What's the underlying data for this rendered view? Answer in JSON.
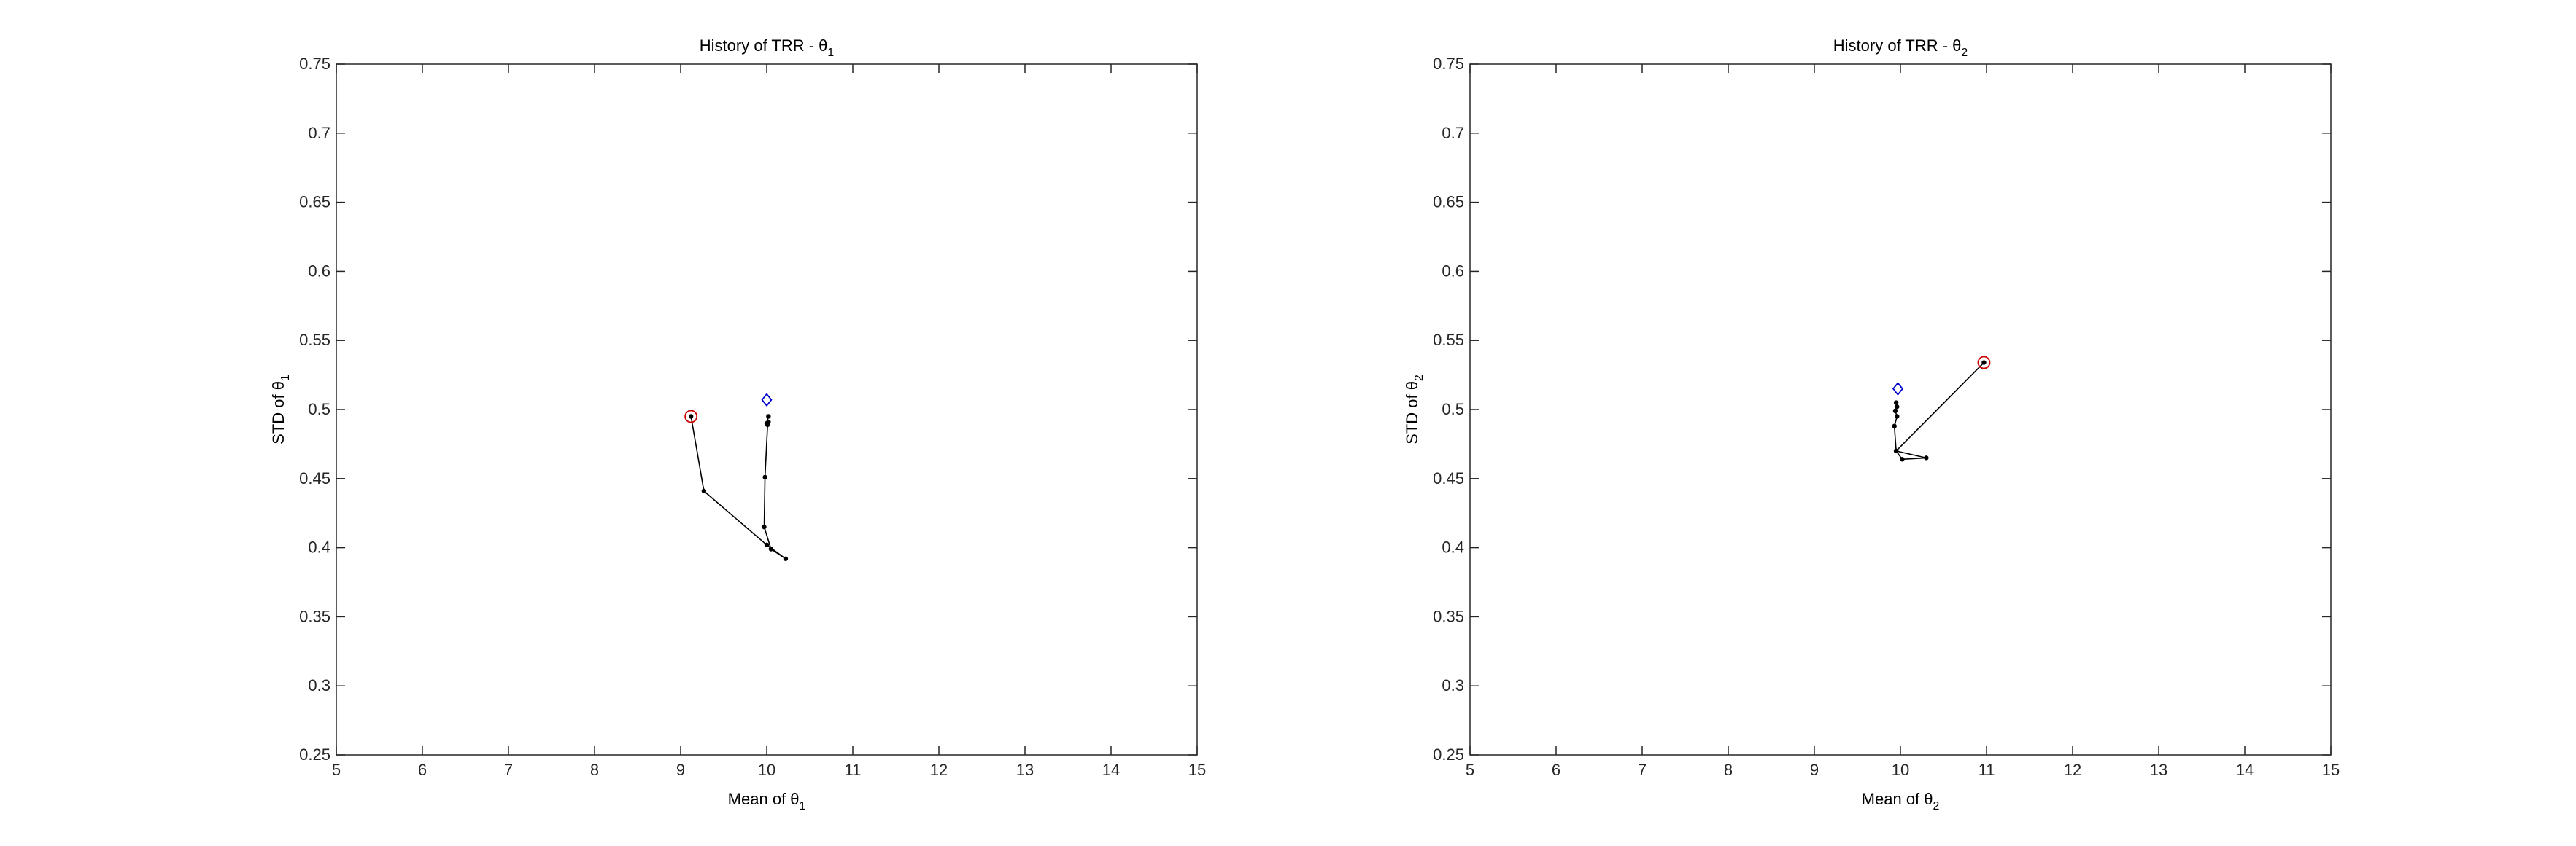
{
  "chart_data": [
    {
      "type": "line",
      "title": "History of TRR - θ",
      "title_subscript": "1",
      "xlabel": "Mean of θ",
      "xlabel_subscript": "1",
      "ylabel": "STD of θ",
      "ylabel_subscript": "1",
      "xlim": [
        5,
        15
      ],
      "ylim": [
        0.25,
        0.75
      ],
      "xticks": [
        "5",
        "6",
        "7",
        "8",
        "9",
        "10",
        "11",
        "12",
        "13",
        "14",
        "15"
      ],
      "yticks": [
        "0.25",
        "0.3",
        "0.35",
        "0.4",
        "0.45",
        "0.5",
        "0.55",
        "0.6",
        "0.65",
        "0.7",
        "0.75"
      ],
      "grid": false,
      "line_color": "#000000",
      "start_marker_color": "#cc0000",
      "target_marker_color": "#0000cc",
      "path": [
        [
          9.12,
          0.495
        ],
        [
          9.27,
          0.441
        ],
        [
          10.0,
          0.402
        ],
        [
          10.22,
          0.392
        ],
        [
          10.05,
          0.399
        ],
        [
          9.97,
          0.415
        ],
        [
          9.98,
          0.451
        ],
        [
          10.01,
          0.489
        ],
        [
          10.02,
          0.491
        ],
        [
          10.0,
          0.49
        ],
        [
          10.02,
          0.495
        ]
      ],
      "start_point": [
        9.12,
        0.495
      ],
      "target_point": [
        10.0,
        0.507
      ]
    },
    {
      "type": "line",
      "title": "History of TRR - θ",
      "title_subscript": "2",
      "xlabel": "Mean of θ",
      "xlabel_subscript": "2",
      "ylabel": "STD of θ",
      "ylabel_subscript": "2",
      "xlim": [
        5,
        15
      ],
      "ylim": [
        0.25,
        0.75
      ],
      "xticks": [
        "5",
        "6",
        "7",
        "8",
        "9",
        "10",
        "11",
        "12",
        "13",
        "14",
        "15"
      ],
      "yticks": [
        "0.25",
        "0.3",
        "0.35",
        "0.4",
        "0.45",
        "0.5",
        "0.55",
        "0.6",
        "0.65",
        "0.7",
        "0.75"
      ],
      "grid": false,
      "line_color": "#000000",
      "start_marker_color": "#cc0000",
      "target_marker_color": "#0000cc",
      "path": [
        [
          10.97,
          0.534
        ],
        [
          9.95,
          0.47
        ],
        [
          10.3,
          0.465
        ],
        [
          10.02,
          0.464
        ],
        [
          9.95,
          0.47
        ],
        [
          9.93,
          0.488
        ],
        [
          9.96,
          0.495
        ],
        [
          9.94,
          0.499
        ],
        [
          9.96,
          0.502
        ],
        [
          9.95,
          0.505
        ]
      ],
      "start_point": [
        10.97,
        0.534
      ],
      "target_point": [
        9.97,
        0.515
      ]
    }
  ]
}
